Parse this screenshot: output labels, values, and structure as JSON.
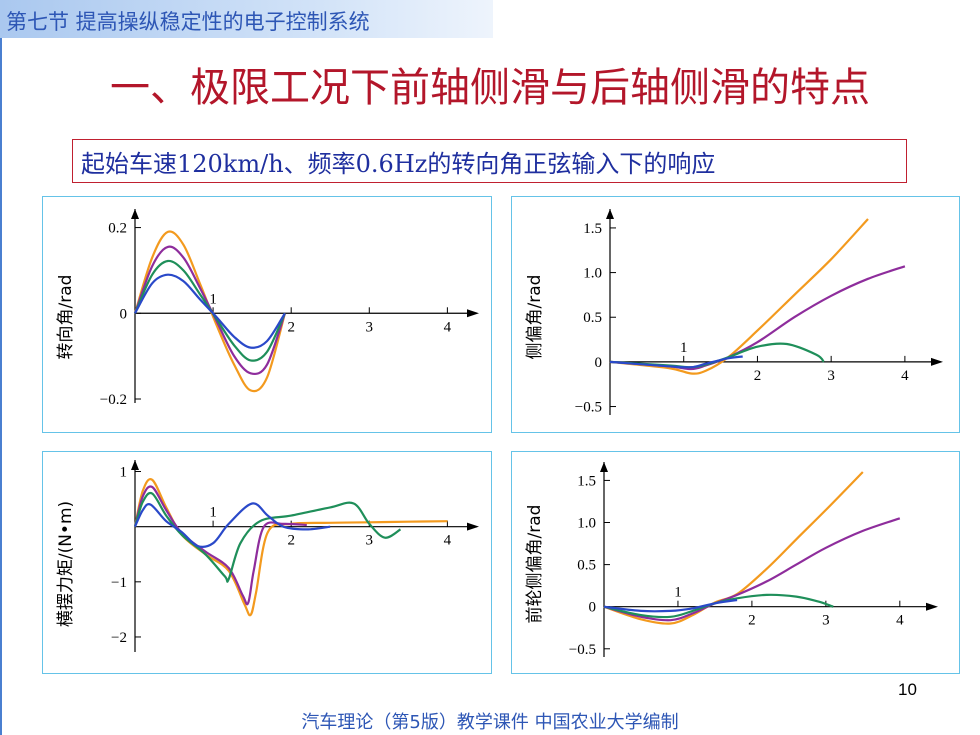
{
  "header": {
    "section_title": "第七节  提高操纵稳定性的电子控制系统"
  },
  "main_title": "一、极限工况下前轴侧滑与后轴侧滑的特点",
  "subtitle": "起始车速120km/h、频率0.6Hz的转向角正弦输入下的响应",
  "page_number": "10",
  "footer": "汽车理论（第5版）教学课件   中国农业大学编制",
  "colors": {
    "orange": "#f39a1e",
    "purple": "#8e2d9c",
    "green": "#1f8f5a",
    "blue": "#2a49c9",
    "axis": "#000000"
  },
  "chart_data": [
    {
      "type": "line",
      "ylabel": "转向角/rad",
      "xticks": [
        "1",
        "2",
        "3",
        "4"
      ],
      "yticks": [
        "0.2",
        "0",
        "-0.2"
      ],
      "xlim": [
        0,
        4.2
      ],
      "ylim": [
        -0.2,
        0.22
      ],
      "series": [
        {
          "color": "orange",
          "x": [
            0,
            0.22,
            0.42,
            0.62,
            0.83,
            1.05,
            1.27,
            1.48,
            1.69,
            1.92
          ],
          "y": [
            0,
            0.13,
            0.19,
            0.16,
            0.07,
            -0.03,
            -0.12,
            -0.18,
            -0.15,
            0
          ]
        },
        {
          "color": "purple",
          "x": [
            0,
            0.22,
            0.42,
            0.62,
            0.83,
            1.05,
            1.27,
            1.48,
            1.69,
            1.92
          ],
          "y": [
            0,
            0.11,
            0.155,
            0.13,
            0.06,
            -0.02,
            -0.1,
            -0.14,
            -0.12,
            0
          ]
        },
        {
          "color": "green",
          "x": [
            0,
            0.22,
            0.42,
            0.62,
            0.83,
            1.05,
            1.27,
            1.48,
            1.69,
            1.92
          ],
          "y": [
            0,
            0.09,
            0.122,
            0.1,
            0.045,
            -0.015,
            -0.075,
            -0.11,
            -0.09,
            0
          ]
        },
        {
          "color": "blue",
          "x": [
            0,
            0.22,
            0.42,
            0.62,
            0.83,
            1.05,
            1.27,
            1.48,
            1.69,
            1.92
          ],
          "y": [
            0,
            0.07,
            0.09,
            0.075,
            0.033,
            -0.01,
            -0.055,
            -0.08,
            -0.065,
            0
          ]
        }
      ]
    },
    {
      "type": "line",
      "ylabel": "侧偏角/rad",
      "xticks": [
        "1",
        "2",
        "3",
        "4"
      ],
      "yticks": [
        "1.5",
        "1.0",
        "0.5",
        "0",
        "-0.5"
      ],
      "xlim": [
        0,
        4.3
      ],
      "ylim": [
        -0.55,
        1.6
      ],
      "series": [
        {
          "color": "orange",
          "x": [
            0,
            0.8,
            1.1,
            1.3,
            1.6,
            2.0,
            2.5,
            3.0,
            3.5
          ],
          "y": [
            0,
            -0.07,
            -0.13,
            -0.1,
            0.05,
            0.35,
            0.75,
            1.15,
            1.6
          ]
        },
        {
          "color": "purple",
          "x": [
            0,
            0.8,
            1.1,
            1.3,
            1.6,
            2.0,
            2.5,
            3.0,
            3.5,
            4.0
          ],
          "y": [
            0,
            -0.05,
            -0.08,
            -0.04,
            0.05,
            0.22,
            0.5,
            0.74,
            0.93,
            1.07
          ]
        },
        {
          "color": "green",
          "x": [
            0,
            0.8,
            1.1,
            1.3,
            1.6,
            2.0,
            2.4,
            2.8,
            2.9
          ],
          "y": [
            0,
            -0.04,
            -0.06,
            -0.03,
            0.05,
            0.17,
            0.2,
            0.08,
            0
          ]
        },
        {
          "color": "blue",
          "x": [
            0,
            0.8,
            1.1,
            1.3,
            1.6,
            1.8
          ],
          "y": [
            0,
            -0.05,
            -0.06,
            -0.02,
            0.04,
            0.06
          ]
        }
      ]
    },
    {
      "type": "line",
      "ylabel": "横摆力矩/(N•m)",
      "xticks": [
        "1",
        "2",
        "3",
        "4"
      ],
      "yticks": [
        "1",
        "-1",
        "-2"
      ],
      "xlim": [
        0,
        4.2
      ],
      "ylim": [
        -2.2,
        1.1
      ],
      "series": [
        {
          "color": "orange",
          "x": [
            0,
            0.1,
            0.22,
            0.4,
            0.6,
            0.9,
            1.2,
            1.4,
            1.48,
            1.55,
            1.7,
            2.0,
            2.5,
            3.0,
            3.5,
            4.0
          ],
          "y": [
            0,
            0.65,
            0.85,
            0.35,
            -0.15,
            -0.5,
            -0.8,
            -1.4,
            -1.6,
            -1.2,
            -0.1,
            0.05,
            0.07,
            0.08,
            0.09,
            0.1
          ]
        },
        {
          "color": "purple",
          "x": [
            0,
            0.1,
            0.22,
            0.4,
            0.6,
            0.9,
            1.2,
            1.38,
            1.45,
            1.52,
            1.65,
            1.9,
            2.2
          ],
          "y": [
            0,
            0.55,
            0.72,
            0.3,
            -0.12,
            -0.45,
            -0.75,
            -1.25,
            -1.38,
            -0.8,
            0.0,
            0.05,
            0.03
          ]
        },
        {
          "color": "green",
          "x": [
            0,
            0.1,
            0.22,
            0.4,
            0.6,
            0.9,
            1.15,
            1.2,
            1.35,
            1.6,
            2.0,
            2.5,
            2.8,
            3.0,
            3.2,
            3.4
          ],
          "y": [
            0,
            0.45,
            0.6,
            0.2,
            -0.15,
            -0.5,
            -0.9,
            -0.95,
            -0.3,
            0.1,
            0.2,
            0.35,
            0.42,
            0.05,
            -0.2,
            -0.05
          ]
        },
        {
          "color": "blue",
          "x": [
            0,
            0.1,
            0.2,
            0.4,
            0.6,
            0.8,
            1.0,
            1.2,
            1.5,
            1.7,
            1.9,
            2.2,
            2.5
          ],
          "y": [
            0,
            0.3,
            0.4,
            0.1,
            -0.1,
            -0.35,
            -0.3,
            0.05,
            0.42,
            0.2,
            0.0,
            -0.05,
            0.0
          ]
        }
      ]
    },
    {
      "type": "line",
      "ylabel": "前轮侧偏角/rad",
      "xticks": [
        "1",
        "2",
        "3",
        "4"
      ],
      "yticks": [
        "1.5",
        "1.0",
        "0.5",
        "0",
        "-0.5"
      ],
      "xlim": [
        0,
        4.3
      ],
      "ylim": [
        -0.55,
        1.6
      ],
      "series": [
        {
          "color": "orange",
          "x": [
            0,
            0.5,
            0.9,
            1.2,
            1.5,
            1.8,
            2.2,
            2.6,
            3.0,
            3.5
          ],
          "y": [
            0,
            -0.15,
            -0.2,
            -0.1,
            0.05,
            0.15,
            0.45,
            0.8,
            1.15,
            1.6
          ]
        },
        {
          "color": "purple",
          "x": [
            0,
            0.5,
            0.9,
            1.2,
            1.5,
            1.8,
            2.2,
            2.6,
            3.0,
            3.5,
            4.0
          ],
          "y": [
            0,
            -0.12,
            -0.16,
            -0.08,
            0.04,
            0.14,
            0.3,
            0.5,
            0.7,
            0.9,
            1.05
          ]
        },
        {
          "color": "green",
          "x": [
            0,
            0.5,
            0.9,
            1.2,
            1.5,
            1.8,
            2.2,
            2.6,
            2.9,
            3.1
          ],
          "y": [
            0,
            -0.1,
            -0.12,
            -0.05,
            0.04,
            0.1,
            0.14,
            0.12,
            0.06,
            0
          ]
        },
        {
          "color": "blue",
          "x": [
            0,
            0.5,
            0.9,
            1.2,
            1.5,
            1.8
          ],
          "y": [
            0,
            -0.05,
            -0.05,
            -0.02,
            0.04,
            0.08
          ]
        }
      ]
    }
  ]
}
